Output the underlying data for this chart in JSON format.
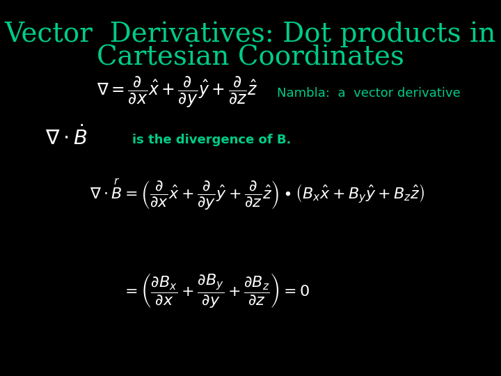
{
  "background_color": "#000000",
  "title_line1": "Vector  Derivatives: Dot products in",
  "title_line2": "Cartesian Coordinates",
  "title_color": "#00CC88",
  "title_fontsize": 28,
  "eq1_note": "Nambla:  a  vector derivative",
  "eq2_note": "is the divergence of B.",
  "math_color": "#FFFFFF",
  "note_color": "#00CC88",
  "math_fontsize_large": 17,
  "math_fontsize_med": 16,
  "note_fontsize": 13
}
